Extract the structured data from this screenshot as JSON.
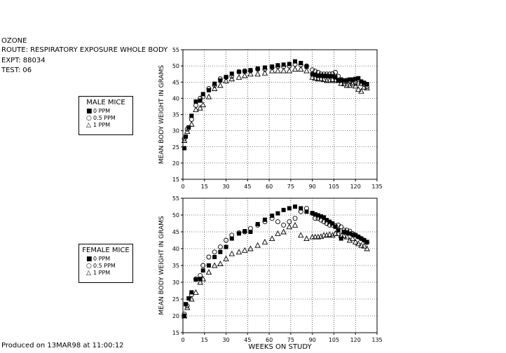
{
  "header": {
    "line1": "OZONE",
    "line2": "ROUTE:  RESPIRATORY EXPOSURE WHOLE BODY",
    "line3": "EXPT: 88034",
    "line4": "TEST: 06"
  },
  "footer": "Produced on 13MAR98 at 11:00:12",
  "legends": [
    {
      "title": "MALE MICE",
      "items": [
        {
          "symbol": "■",
          "label": "0 PPM"
        },
        {
          "symbol": "○",
          "label": "0.5 PPM"
        },
        {
          "symbol": "△",
          "label": "1 PPM"
        }
      ]
    },
    {
      "title": "FEMALE MICE",
      "items": [
        {
          "symbol": "■",
          "label": "0 PPM"
        },
        {
          "symbol": "○",
          "label": "0.5 PPM"
        },
        {
          "symbol": "△",
          "label": "1 PPM"
        }
      ]
    }
  ],
  "chart_data": [
    {
      "type": "scatter",
      "title": "MALE MICE",
      "xlabel": "",
      "ylabel": "MEAN BODY WEIGHT IN GRAMS",
      "xlim": [
        0,
        135
      ],
      "ylim": [
        15,
        55
      ],
      "xticks": [
        0,
        15,
        30,
        45,
        60,
        75,
        90,
        105,
        120,
        135
      ],
      "yticks": [
        15,
        20,
        25,
        30,
        35,
        40,
        45,
        50,
        55
      ],
      "grid": true,
      "series": [
        {
          "name": "0 PPM",
          "marker": "filled-square",
          "x": [
            1,
            2,
            4,
            6,
            9,
            12,
            14,
            18,
            22,
            26,
            30,
            34,
            39,
            43,
            47,
            52,
            57,
            62,
            66,
            70,
            74,
            78,
            82,
            86,
            90,
            92,
            94,
            96,
            98,
            100,
            102,
            104,
            106,
            108,
            110,
            112,
            114,
            116,
            118,
            120,
            122,
            124,
            126,
            128
          ],
          "y": [
            24.6,
            28.2,
            31.0,
            34.6,
            39.0,
            39.3,
            41.3,
            42.5,
            44.5,
            45.5,
            46.6,
            47.6,
            48.2,
            48.3,
            48.7,
            49.2,
            49.5,
            49.8,
            50.2,
            50.4,
            50.6,
            51.4,
            50.9,
            49.8,
            47.4,
            47.3,
            47.0,
            47.0,
            46.9,
            46.9,
            46.8,
            46.8,
            46.5,
            45.5,
            45.8,
            45.5,
            45.6,
            45.8,
            45.8,
            46.0,
            46.2,
            45.2,
            44.8,
            44.4
          ]
        },
        {
          "name": "0.5 PPM",
          "marker": "open-circle",
          "x": [
            1,
            3,
            6,
            9,
            12,
            14,
            18,
            22,
            26,
            30,
            34,
            39,
            43,
            47,
            52,
            57,
            62,
            66,
            70,
            74,
            78,
            82,
            86,
            90,
            92,
            94,
            96,
            98,
            100,
            102,
            104,
            106,
            108,
            110,
            112,
            114,
            116,
            118,
            120,
            122,
            124,
            126,
            128
          ],
          "y": [
            27.5,
            30.5,
            33.5,
            37.8,
            40.0,
            40.5,
            43.0,
            44.0,
            46.0,
            46.5,
            46.8,
            48.2,
            48.5,
            48.5,
            49.0,
            49.0,
            49.5,
            49.8,
            49.8,
            50.0,
            50.5,
            50.3,
            50.0,
            48.8,
            48.4,
            48.0,
            47.5,
            47.5,
            47.5,
            47.5,
            47.6,
            48.0,
            46.8,
            45.6,
            45.1,
            45.4,
            45.2,
            44.9,
            44.8,
            44.6,
            44.5,
            44.3,
            43.6
          ]
        },
        {
          "name": "1 PPM",
          "marker": "open-triangle",
          "x": [
            1,
            3,
            6,
            9,
            12,
            14,
            18,
            22,
            26,
            30,
            34,
            39,
            43,
            47,
            52,
            57,
            62,
            66,
            70,
            74,
            78,
            82,
            86,
            90,
            92,
            94,
            96,
            98,
            100,
            102,
            104,
            106,
            108,
            110,
            112,
            114,
            116,
            118,
            120,
            122,
            124,
            126,
            128
          ],
          "y": [
            27.0,
            29.8,
            32.0,
            36.5,
            37.0,
            38.0,
            40.5,
            43.0,
            44.0,
            45.4,
            46.0,
            46.5,
            47.0,
            47.5,
            47.5,
            47.8,
            48.5,
            48.5,
            48.5,
            48.5,
            49.0,
            49.0,
            48.5,
            46.5,
            46.2,
            46.0,
            46.0,
            45.8,
            45.5,
            45.5,
            45.8,
            45.5,
            45.5,
            44.6,
            44.5,
            44.0,
            44.0,
            44.5,
            43.8,
            42.8,
            42.2,
            43.5,
            43.2
          ]
        }
      ]
    },
    {
      "type": "scatter",
      "title": "FEMALE MICE",
      "xlabel": "WEEKS ON STUDY",
      "ylabel": "MEAN BODY WEIGHT IN GRAMS",
      "xlim": [
        0,
        135
      ],
      "ylim": [
        15,
        55
      ],
      "xticks": [
        0,
        15,
        30,
        45,
        60,
        75,
        90,
        105,
        120,
        135
      ],
      "yticks": [
        15,
        20,
        25,
        30,
        35,
        40,
        45,
        50,
        55
      ],
      "grid": true,
      "series": [
        {
          "name": "0 PPM",
          "marker": "filled-square",
          "x": [
            1,
            2,
            4,
            6,
            9,
            12,
            14,
            18,
            22,
            26,
            30,
            34,
            39,
            43,
            47,
            52,
            57,
            62,
            66,
            70,
            74,
            78,
            82,
            86,
            90,
            92,
            94,
            96,
            98,
            100,
            102,
            104,
            106,
            108,
            110,
            112,
            114,
            116,
            118,
            120,
            122,
            124,
            126,
            128
          ],
          "y": [
            20.0,
            23.5,
            25.2,
            27.0,
            30.8,
            31.0,
            33.5,
            35.0,
            37.5,
            39.0,
            40.5,
            43.0,
            44.5,
            45.2,
            45.0,
            47.3,
            48.6,
            49.8,
            50.5,
            51.5,
            52.0,
            52.5,
            52.0,
            51.0,
            50.6,
            50.2,
            49.9,
            49.6,
            49.3,
            48.5,
            48.0,
            47.5,
            46.5,
            45.5,
            43.0,
            45.0,
            44.8,
            44.5,
            44.2,
            44.0,
            43.5,
            43.0,
            42.5,
            42.0
          ]
        },
        {
          "name": "0.5 PPM",
          "marker": "open-circle",
          "x": [
            1,
            3,
            6,
            9,
            12,
            14,
            18,
            22,
            26,
            30,
            34,
            39,
            43,
            47,
            52,
            57,
            62,
            66,
            70,
            74,
            78,
            82,
            86,
            90,
            92,
            94,
            96,
            98,
            100,
            102,
            104,
            106,
            108,
            110,
            112,
            114,
            116,
            118,
            120,
            122,
            124,
            126,
            128
          ],
          "y": [
            20.5,
            23.0,
            26.3,
            31.0,
            32.0,
            35.0,
            37.5,
            39.0,
            40.5,
            42.5,
            44.0,
            44.7,
            45.0,
            46.0,
            47.0,
            48.0,
            49.0,
            48.0,
            47.0,
            48.0,
            49.0,
            51.0,
            52.0,
            50.5,
            49.0,
            49.0,
            48.5,
            48.0,
            47.5,
            47.0,
            47.0,
            46.8,
            47.0,
            46.5,
            45.5,
            45.5,
            45.2,
            44.5,
            44.0,
            43.5,
            43.0,
            42.5,
            41.8
          ]
        },
        {
          "name": "1 PPM",
          "marker": "open-triangle",
          "x": [
            1,
            3,
            6,
            9,
            12,
            14,
            18,
            22,
            26,
            30,
            34,
            39,
            43,
            47,
            52,
            57,
            62,
            66,
            70,
            74,
            78,
            82,
            86,
            90,
            92,
            94,
            96,
            98,
            100,
            102,
            104,
            106,
            108,
            110,
            112,
            114,
            116,
            118,
            120,
            122,
            124,
            126,
            128
          ],
          "y": [
            20.0,
            22.5,
            25.0,
            27.0,
            30.0,
            31.0,
            33.0,
            35.0,
            35.5,
            37.0,
            38.5,
            39.0,
            39.5,
            40.0,
            41.0,
            42.0,
            43.0,
            44.5,
            45.0,
            46.5,
            47.0,
            44.0,
            43.0,
            43.5,
            43.5,
            43.5,
            43.6,
            44.0,
            44.0,
            44.2,
            44.0,
            44.5,
            44.5,
            44.0,
            43.8,
            43.5,
            42.5,
            43.0,
            42.0,
            41.5,
            41.0,
            40.8,
            40.0
          ]
        }
      ]
    }
  ]
}
